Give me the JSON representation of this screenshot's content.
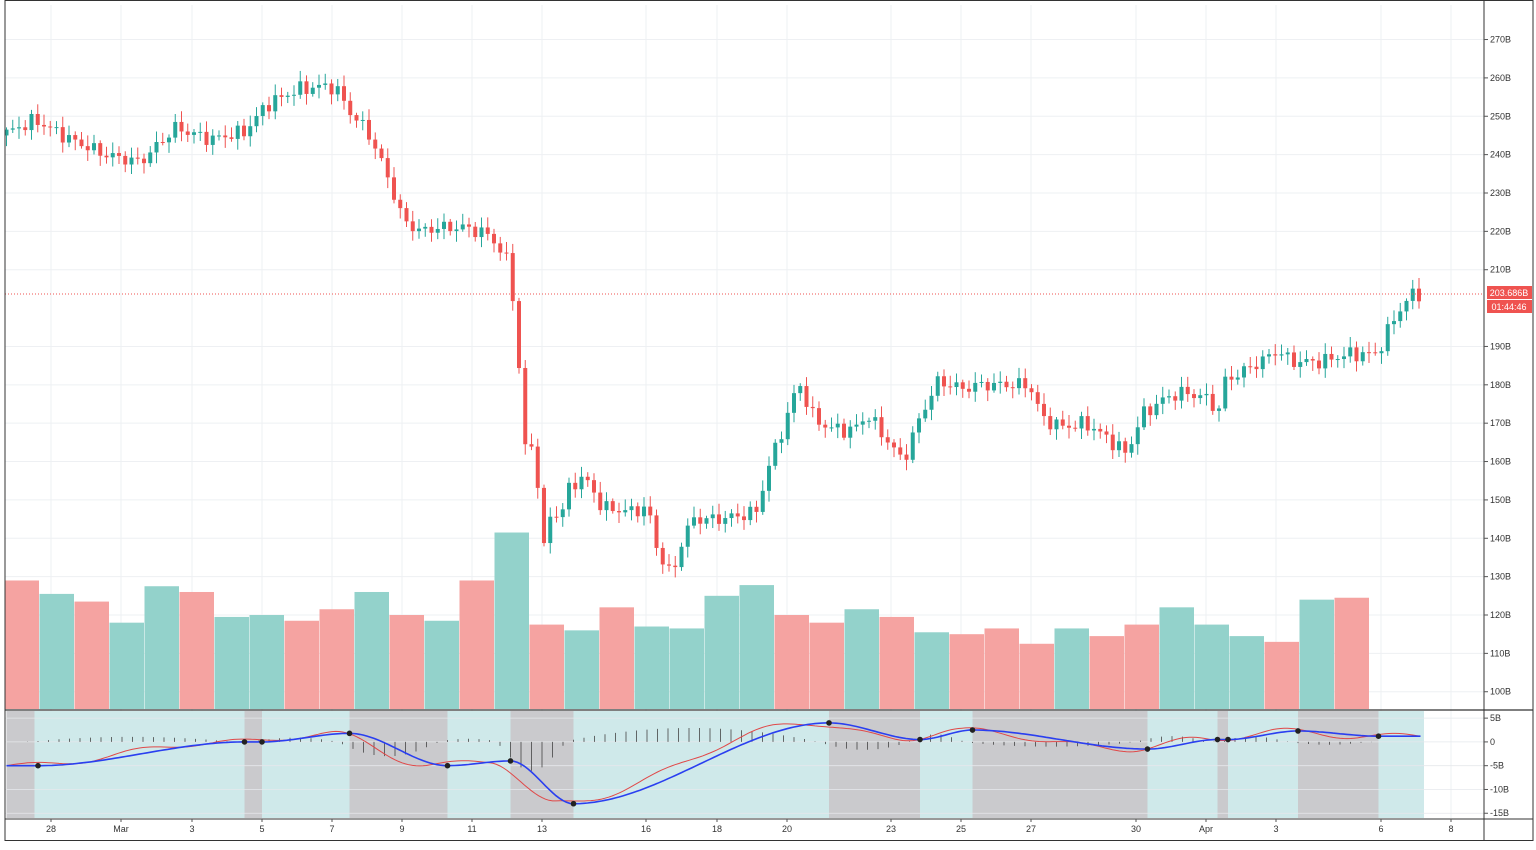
{
  "chart_data": {
    "type": "candlestick",
    "price_axis": {
      "ticks": [
        "270B",
        "260B",
        "250B",
        "240B",
        "230B",
        "220B",
        "210B",
        "190B",
        "180B",
        "170B",
        "160B",
        "150B",
        "140B",
        "130B",
        "120B",
        "110B",
        "100B"
      ],
      "tick_values": [
        270,
        260,
        250,
        240,
        230,
        220,
        210,
        190,
        180,
        170,
        160,
        150,
        140,
        130,
        120,
        110,
        100
      ],
      "range": [
        95.5,
        279
      ]
    },
    "x_axis": {
      "ticks": [
        "28",
        "Mar",
        "3",
        "5",
        "7",
        "9",
        "11",
        "13",
        "16",
        "18",
        "20",
        "23",
        "25",
        "27",
        "30",
        "Apr",
        "3",
        "6",
        "8"
      ]
    },
    "last_price": {
      "value": 203.686,
      "label": "203.686B",
      "countdown": "01:44:46"
    },
    "volume_blocks": [
      {
        "dir": "down",
        "v": 129
      },
      {
        "dir": "up",
        "v": 125.5
      },
      {
        "dir": "down",
        "v": 123.5
      },
      {
        "dir": "up",
        "v": 118
      },
      {
        "dir": "up",
        "v": 127.5
      },
      {
        "dir": "down",
        "v": 126
      },
      {
        "dir": "up",
        "v": 119.5
      },
      {
        "dir": "up",
        "v": 120
      },
      {
        "dir": "down",
        "v": 118.5
      },
      {
        "dir": "down",
        "v": 121.5
      },
      {
        "dir": "up",
        "v": 126
      },
      {
        "dir": "down",
        "v": 120
      },
      {
        "dir": "up",
        "v": 118.5
      },
      {
        "dir": "down",
        "v": 129
      },
      {
        "dir": "up",
        "v": 141.5
      },
      {
        "dir": "down",
        "v": 117.5
      },
      {
        "dir": "up",
        "v": 116
      },
      {
        "dir": "down",
        "v": 122
      },
      {
        "dir": "up",
        "v": 117
      },
      {
        "dir": "up",
        "v": 116.5
      },
      {
        "dir": "up",
        "v": 125
      },
      {
        "dir": "up",
        "v": 127.8
      },
      {
        "dir": "down",
        "v": 120
      },
      {
        "dir": "down",
        "v": 118
      },
      {
        "dir": "up",
        "v": 121.5
      },
      {
        "dir": "down",
        "v": 119.5
      },
      {
        "dir": "up",
        "v": 115.5
      },
      {
        "dir": "down",
        "v": 115
      },
      {
        "dir": "down",
        "v": 116.5
      },
      {
        "dir": "down",
        "v": 112.5
      },
      {
        "dir": "up",
        "v": 116.5
      },
      {
        "dir": "down",
        "v": 114.5
      },
      {
        "dir": "down",
        "v": 117.5
      },
      {
        "dir": "up",
        "v": 122
      },
      {
        "dir": "up",
        "v": 117.5
      },
      {
        "dir": "up",
        "v": 114.5
      },
      {
        "dir": "down",
        "v": 113
      },
      {
        "dir": "up",
        "v": 124
      },
      {
        "dir": "down",
        "v": 124.5
      }
    ],
    "indicator": {
      "ticks": [
        "5B",
        "0",
        "-5B",
        "-10B",
        "-15B"
      ],
      "tick_values": [
        5,
        0,
        -5,
        -10,
        -15
      ],
      "range": [
        -16,
        6.5
      ],
      "regimes": [
        {
          "from": 0,
          "to": 0.8,
          "state": "bear"
        },
        {
          "from": 0.8,
          "to": 6.8,
          "state": "bull"
        },
        {
          "from": 6.8,
          "to": 7.3,
          "state": "bear"
        },
        {
          "from": 7.3,
          "to": 9.8,
          "state": "bull"
        },
        {
          "from": 9.8,
          "to": 12.6,
          "state": "bear"
        },
        {
          "from": 12.6,
          "to": 14.4,
          "state": "bull"
        },
        {
          "from": 14.4,
          "to": 16.2,
          "state": "bear"
        },
        {
          "from": 16.2,
          "to": 23.5,
          "state": "bull"
        },
        {
          "from": 23.5,
          "to": 26.1,
          "state": "bear"
        },
        {
          "from": 26.1,
          "to": 27.6,
          "state": "bull"
        },
        {
          "from": 27.6,
          "to": 32.6,
          "state": "bear"
        },
        {
          "from": 32.6,
          "to": 34.6,
          "state": "bull"
        },
        {
          "from": 34.6,
          "to": 34.9,
          "state": "bear"
        },
        {
          "from": 34.9,
          "to": 36.9,
          "state": "bull"
        },
        {
          "from": 36.9,
          "to": 39.2,
          "state": "bear"
        },
        {
          "from": 39.2,
          "to": 40.5,
          "state": "bull"
        }
      ],
      "crosses": [
        [
          0.9,
          -5
        ],
        [
          6.8,
          0
        ],
        [
          7.3,
          0
        ],
        [
          9.8,
          1.8
        ],
        [
          12.6,
          -5
        ],
        [
          14.4,
          -4
        ],
        [
          16.2,
          -13
        ],
        [
          23.5,
          4
        ],
        [
          26.1,
          0.5
        ],
        [
          27.6,
          2.5
        ],
        [
          32.6,
          -1.5
        ],
        [
          34.6,
          0.5
        ],
        [
          34.9,
          0.5
        ],
        [
          36.9,
          2.3
        ],
        [
          39.2,
          1.2
        ]
      ]
    }
  }
}
